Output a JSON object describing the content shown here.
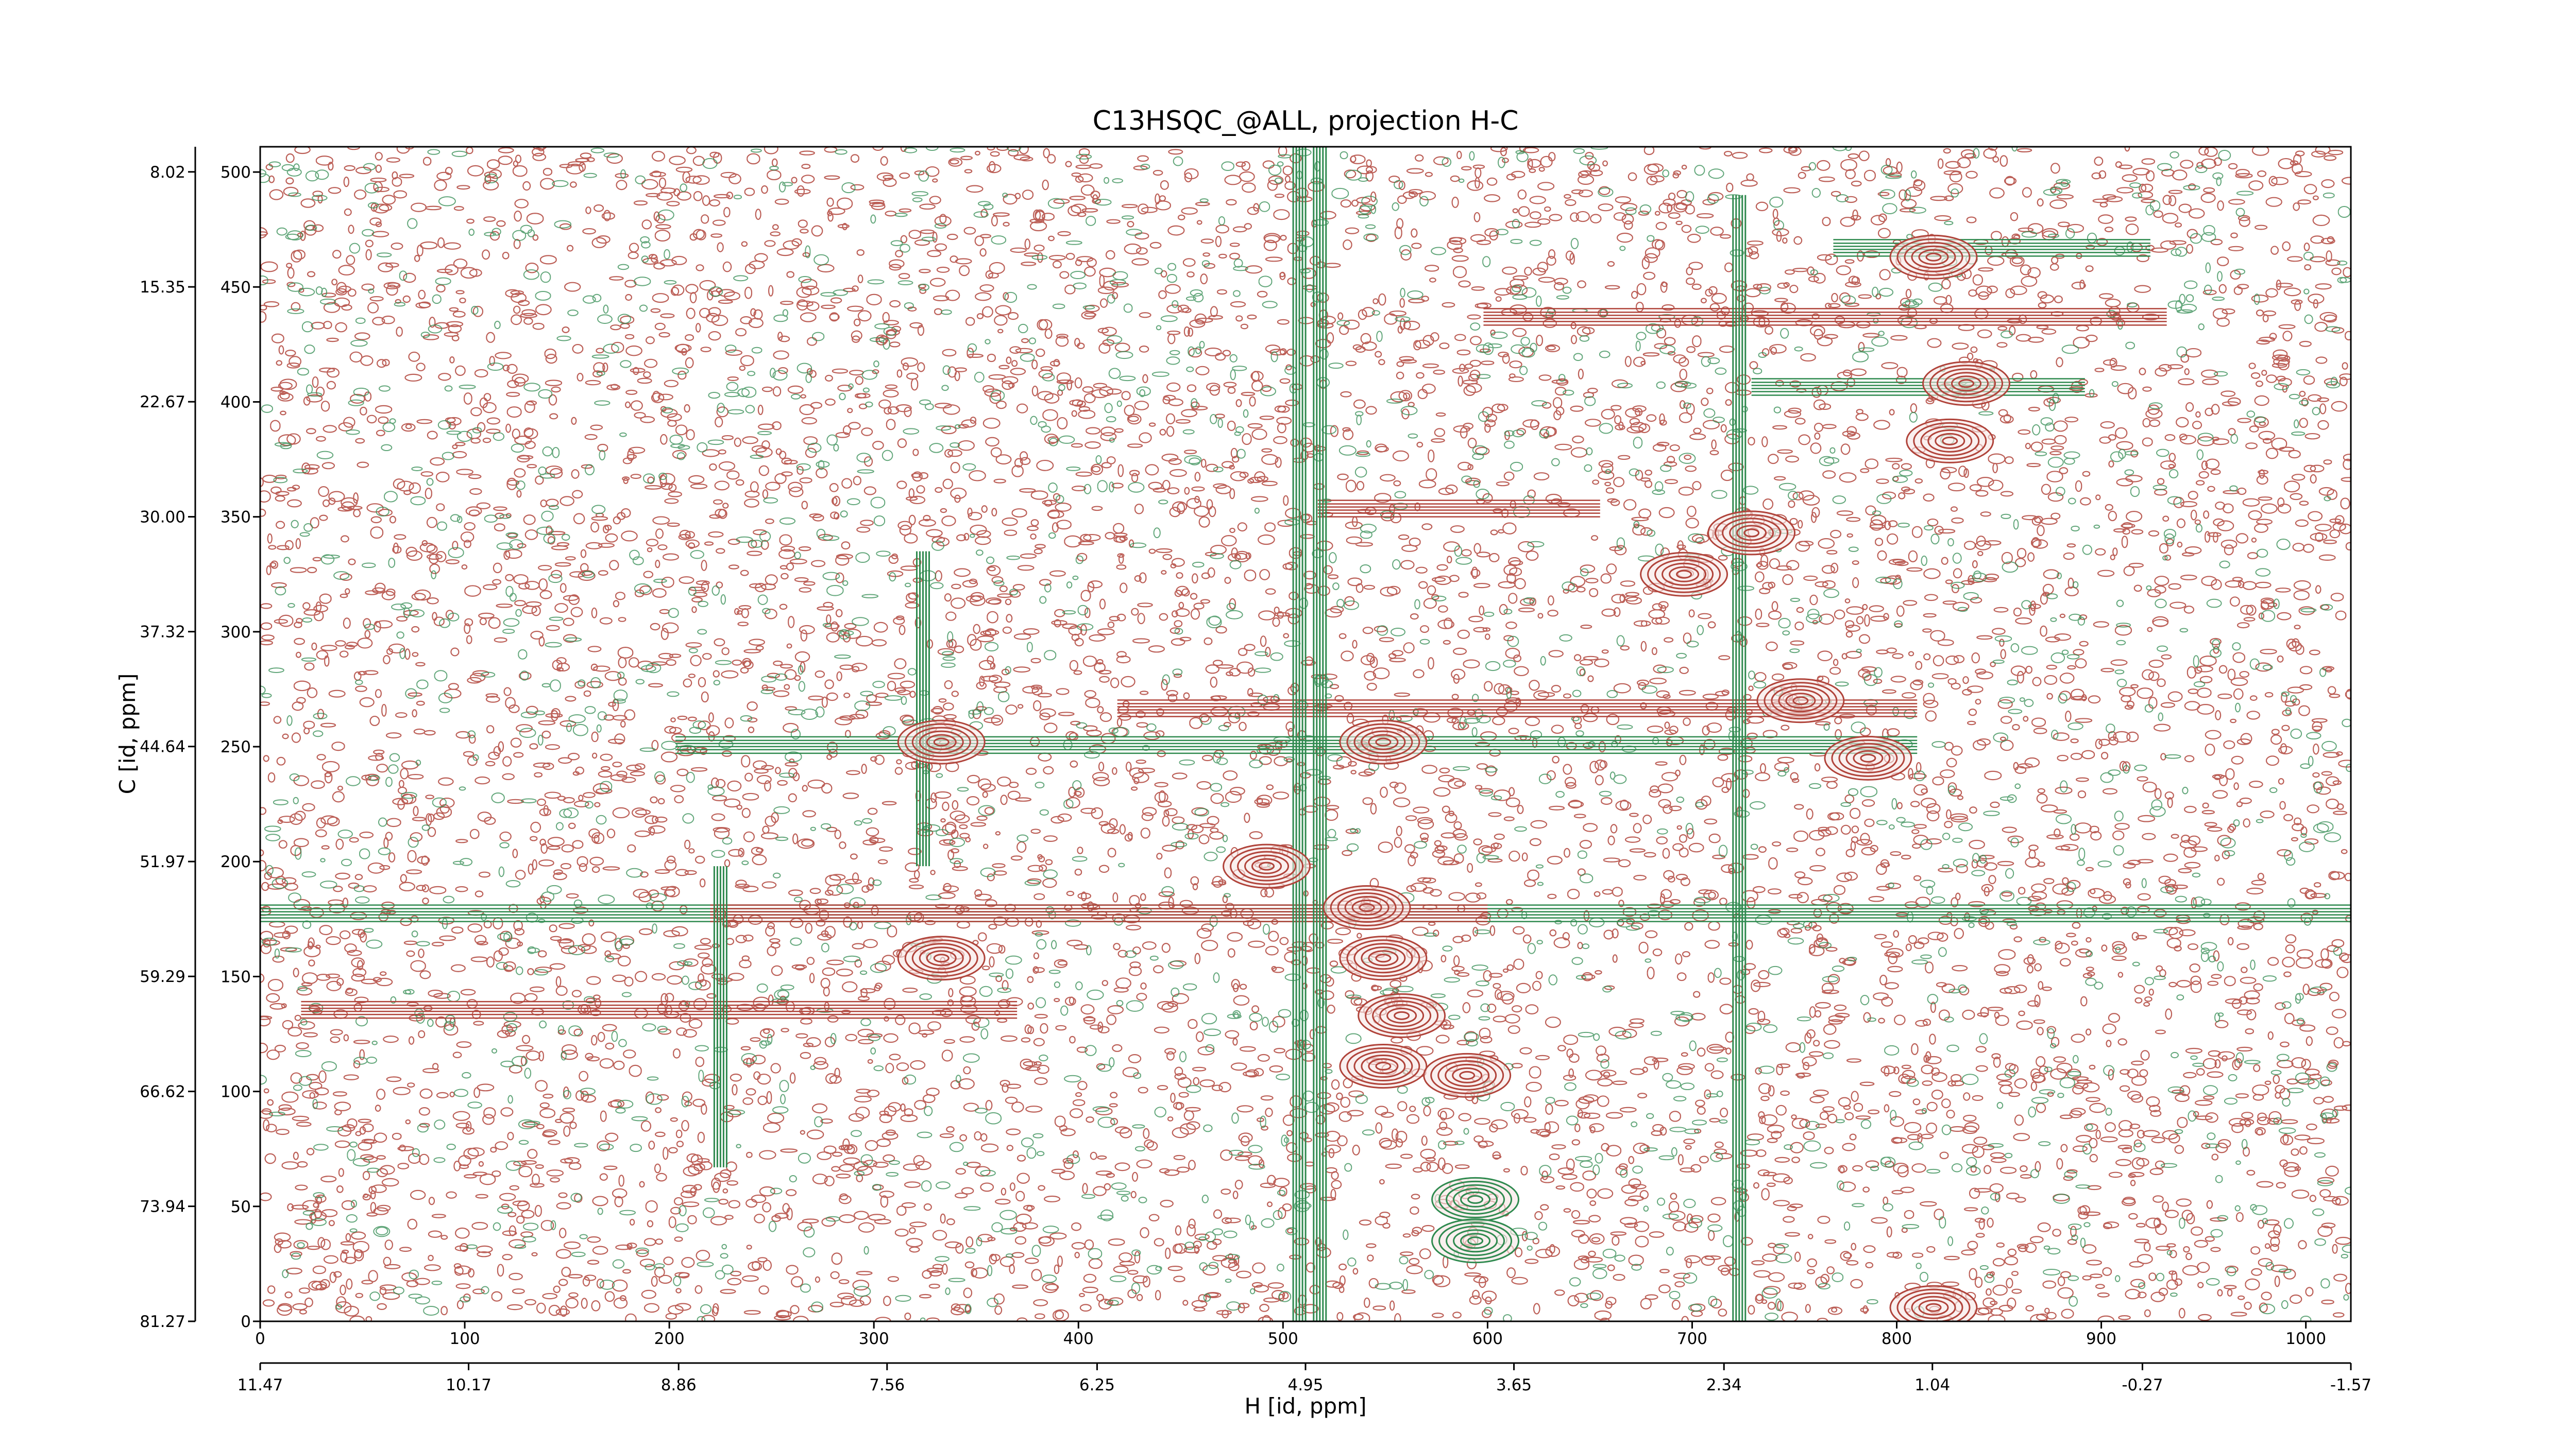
{
  "chart_data": {
    "type": "contour",
    "title": "C13HSQC_@ALL, projection H-C",
    "xlabel": "H [id, ppm]",
    "ylabel": "C [id, ppm]",
    "xlim": [
      0,
      1022
    ],
    "xticks": [
      0,
      100,
      200,
      300,
      400,
      500,
      600,
      700,
      800,
      900,
      1000
    ],
    "ylim": [
      0,
      511
    ],
    "yticks": [
      0,
      50,
      100,
      150,
      200,
      250,
      300,
      350,
      400,
      450,
      500
    ],
    "x2lim": [
      11.47,
      -1.57
    ],
    "x2ticks": [
      11.47,
      10.17,
      8.86,
      7.56,
      6.25,
      4.95,
      3.65,
      2.34,
      1.04,
      -0.27,
      -1.57
    ],
    "y2lim": [
      81.27,
      6.42
    ],
    "y2ticks": [
      81.27,
      73.94,
      66.62,
      59.29,
      51.97,
      44.64,
      37.32,
      30.0,
      22.67,
      15.35,
      8.02
    ],
    "y2tick_labels": [
      "81.27",
      "73.94",
      "66.62",
      "59.29",
      "51.97",
      "44.64",
      "37.32",
      "30.00",
      "22.67",
      "15.35",
      "8.02"
    ],
    "positive_color": "#b0433a",
    "negative_color": "#2f8a4f",
    "vertical_bands": [
      {
        "x": 508,
        "y": [
          0,
          511
        ],
        "color": "#2f8a4f"
      },
      {
        "x": 518,
        "y": [
          0,
          511
        ],
        "color": "#2f8a4f"
      },
      {
        "x": 723,
        "y": [
          0,
          490
        ],
        "color": "#2f8a4f"
      },
      {
        "x": 324,
        "y": [
          198,
          335
        ],
        "color": "#2f8a4f"
      },
      {
        "x": 225,
        "y": [
          67,
          198
        ],
        "color": "#2f8a4f"
      }
    ],
    "horizontal_bands": [
      {
        "y": 177.5,
        "x": [
          0,
          1022
        ],
        "color": "#2f8a4f"
      },
      {
        "y": 177.5,
        "x": [
          220,
          600
        ],
        "color": "#b0433a"
      },
      {
        "y": 135.5,
        "x": [
          20,
          370
        ],
        "color": "#b0433a"
      },
      {
        "y": 250.7,
        "x": [
          203,
          810
        ],
        "color": "#2f8a4f"
      },
      {
        "y": 266.7,
        "x": [
          419,
          810
        ],
        "color": "#b0433a"
      },
      {
        "y": 353.6,
        "x": [
          517,
          655
        ],
        "color": "#b0433a"
      },
      {
        "y": 437,
        "x": [
          598,
          932
        ],
        "color": "#b0433a"
      },
      {
        "y": 406.5,
        "x": [
          729,
          892
        ],
        "color": "#2f8a4f"
      },
      {
        "y": 467,
        "x": [
          769,
          924
        ],
        "color": "#2f8a4f"
      }
    ],
    "peaks": [
      {
        "x": 818,
        "y": 463,
        "color": "#b0433a"
      },
      {
        "x": 834,
        "y": 408,
        "color": "#b0433a"
      },
      {
        "x": 826,
        "y": 383,
        "color": "#b0433a"
      },
      {
        "x": 729,
        "y": 343,
        "color": "#b0433a"
      },
      {
        "x": 696,
        "y": 325,
        "color": "#b0433a"
      },
      {
        "x": 753,
        "y": 270,
        "color": "#b0433a"
      },
      {
        "x": 549,
        "y": 252,
        "color": "#b0433a"
      },
      {
        "x": 786,
        "y": 245,
        "color": "#b0433a"
      },
      {
        "x": 492,
        "y": 198,
        "color": "#b0433a"
      },
      {
        "x": 541,
        "y": 180,
        "color": "#b0433a"
      },
      {
        "x": 549,
        "y": 158,
        "color": "#b0433a"
      },
      {
        "x": 558,
        "y": 133,
        "color": "#b0433a"
      },
      {
        "x": 549,
        "y": 111,
        "color": "#b0433a"
      },
      {
        "x": 590,
        "y": 107,
        "color": "#b0433a"
      },
      {
        "x": 594,
        "y": 53,
        "color": "#2f8a4f"
      },
      {
        "x": 594,
        "y": 35,
        "color": "#2f8a4f"
      },
      {
        "x": 333,
        "y": 252,
        "color": "#b0433a"
      },
      {
        "x": 333,
        "y": 158,
        "color": "#b0433a"
      },
      {
        "x": 818,
        "y": 6,
        "color": "#b0433a"
      }
    ]
  }
}
